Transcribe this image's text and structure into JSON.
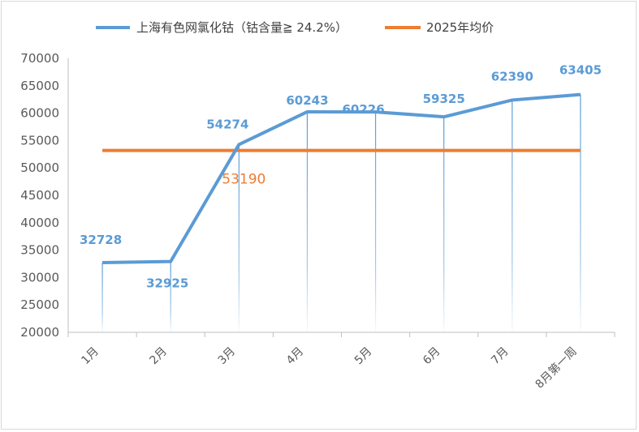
{
  "chart_data": {
    "type": "line",
    "categories": [
      "1月",
      "2月",
      "3月",
      "4月",
      "5月",
      "6月",
      "7月",
      "8月第一周"
    ],
    "series": [
      {
        "name": "上海有色网氯化钴（钴含量≧ 24.2%）",
        "color": "#5b9bd5",
        "values": [
          32728,
          32925,
          54274,
          60243,
          60226,
          59325,
          62390,
          63405
        ],
        "labels": [
          "32728",
          "32925",
          "54274",
          "60243",
          "60226",
          "59325",
          "62390",
          "63405"
        ]
      },
      {
        "name": "2025年均价",
        "color": "#ed7d31",
        "values": [
          53190,
          53190,
          53190,
          53190,
          53190,
          53190,
          53190,
          53190
        ],
        "label": "53190"
      }
    ],
    "yticks": [
      "20000",
      "25000",
      "30000",
      "35000",
      "40000",
      "45000",
      "50000",
      "55000",
      "60000",
      "65000",
      "70000"
    ],
    "ylim": [
      20000,
      70000
    ],
    "legend_position": "top",
    "drop_lines": true,
    "grid": false
  }
}
